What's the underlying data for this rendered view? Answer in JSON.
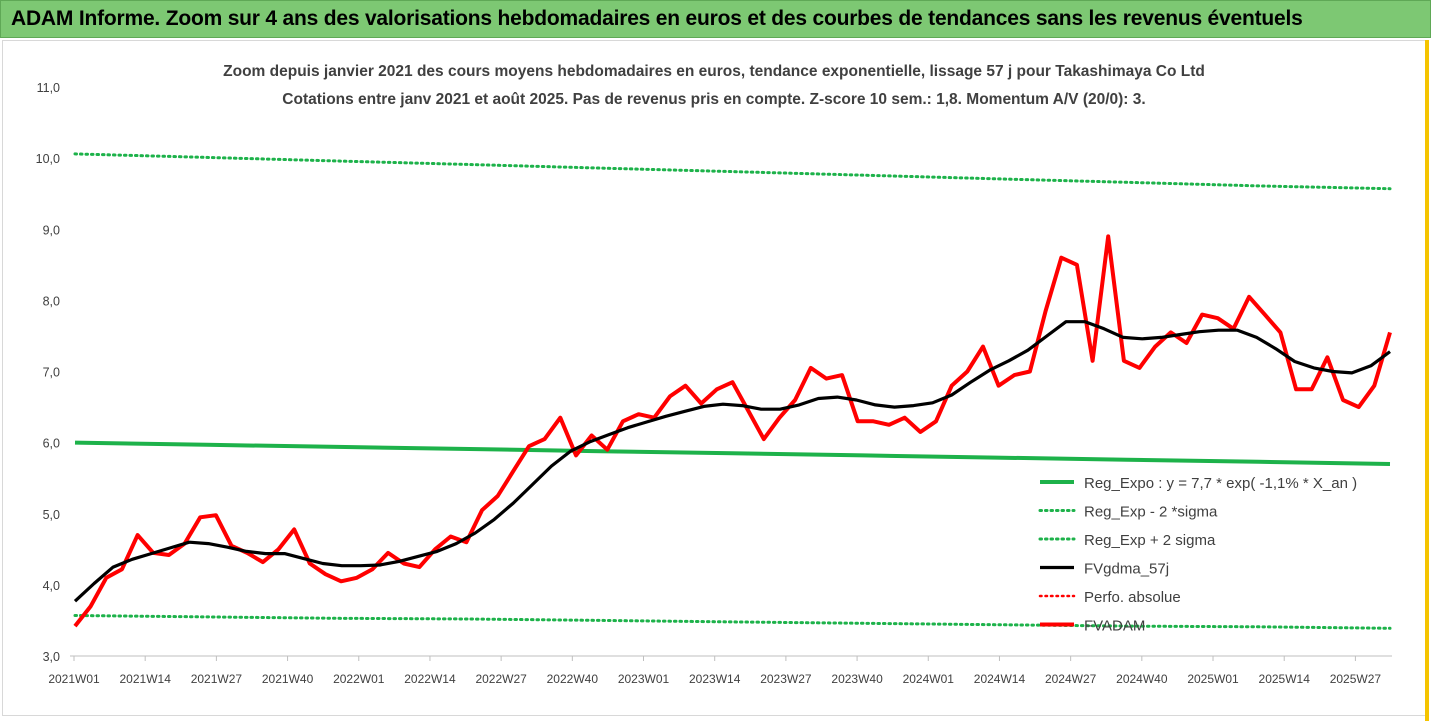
{
  "banner": {
    "title": "ADAM Informe. Zoom sur 4 ans des valorisations hebdomadaires en euros et des courbes de tendances sans les revenus éventuels"
  },
  "chart_data": {
    "type": "line",
    "title": "Zoom depuis janvier 2021 des cours moyens hebdomadaires en euros, tendance exponentielle, lissage 57 j pour Takashimaya Co Ltd",
    "subtitle": "Cotations entre janv 2021 et août 2025.  Pas de revenus pris en compte. Z-score 10 sem.: 1,8. Momentum A/V (20/0): 3.",
    "xlabel": "",
    "ylabel": "",
    "ylim": [
      3.0,
      11.0
    ],
    "yticks": [
      "3,0",
      "4,0",
      "5,0",
      "6,0",
      "7,0",
      "8,0",
      "9,0",
      "10,0",
      "11,0"
    ],
    "xticks": [
      "2021W01",
      "2021W14",
      "2021W27",
      "2021W40",
      "2022W01",
      "2022W14",
      "2022W27",
      "2022W40",
      "2023W01",
      "2023W14",
      "2023W27",
      "2023W40",
      "2024W01",
      "2024W14",
      "2024W27",
      "2024W40",
      "2025W01",
      "2025W14",
      "2025W27"
    ],
    "grid": false,
    "legend_position": "bottom-right",
    "colors": {
      "green": "#1db24a",
      "black": "#000000",
      "red": "#ff0000"
    },
    "series": [
      {
        "name": "Reg_Expo : y = 7,7 * exp( -1,1% *  X_an )",
        "style": "solid-green",
        "values": [
          6.0,
          5.97,
          5.94,
          5.91,
          5.88,
          5.85,
          5.82,
          5.79,
          5.76,
          5.73,
          5.7
        ]
      },
      {
        "name": "Reg_Exp - 2 *sigma",
        "style": "dotted-green",
        "values": [
          3.57,
          3.55,
          3.53,
          3.52,
          3.5,
          3.48,
          3.46,
          3.44,
          3.42,
          3.41,
          3.39
        ]
      },
      {
        "name": "Reg_Exp + 2 sigma",
        "style": "dotted-green",
        "values": [
          10.06,
          10.01,
          9.96,
          9.91,
          9.86,
          9.81,
          9.76,
          9.71,
          9.66,
          9.61,
          9.57
        ]
      },
      {
        "name": "FVgdma_57j",
        "style": "solid-black",
        "values": [
          3.77,
          4.02,
          4.25,
          4.36,
          4.44,
          4.52,
          4.6,
          4.58,
          4.53,
          4.47,
          4.44,
          4.44,
          4.37,
          4.3,
          4.27,
          4.27,
          4.28,
          4.33,
          4.4,
          4.47,
          4.58,
          4.73,
          4.92,
          5.15,
          5.41,
          5.67,
          5.88,
          6.01,
          6.11,
          6.21,
          6.29,
          6.37,
          6.44,
          6.51,
          6.54,
          6.52,
          6.47,
          6.47,
          6.53,
          6.62,
          6.64,
          6.6,
          6.53,
          6.5,
          6.52,
          6.56,
          6.67,
          6.85,
          7.02,
          7.15,
          7.3,
          7.5,
          7.7,
          7.7,
          7.6,
          7.48,
          7.46,
          7.48,
          7.52,
          7.56,
          7.58,
          7.58,
          7.48,
          7.32,
          7.14,
          7.05,
          7.0,
          6.98,
          7.08,
          7.28
        ]
      },
      {
        "name": "Perfo. absolue",
        "style": "dotted-red",
        "values": []
      },
      {
        "name": "FVADAM",
        "style": "solid-red",
        "values": [
          3.42,
          3.7,
          4.1,
          4.22,
          4.7,
          4.45,
          4.42,
          4.58,
          4.95,
          4.98,
          4.55,
          4.45,
          4.32,
          4.5,
          4.78,
          4.3,
          4.15,
          4.05,
          4.1,
          4.22,
          4.45,
          4.3,
          4.25,
          4.5,
          4.68,
          4.6,
          5.05,
          5.25,
          5.6,
          5.95,
          6.05,
          6.35,
          5.82,
          6.1,
          5.9,
          6.3,
          6.4,
          6.35,
          6.65,
          6.8,
          6.55,
          6.75,
          6.85,
          6.45,
          6.05,
          6.35,
          6.6,
          7.05,
          6.9,
          6.95,
          6.3,
          6.3,
          6.25,
          6.35,
          6.15,
          6.3,
          6.8,
          7.0,
          7.35,
          6.8,
          6.95,
          7.0,
          7.85,
          8.6,
          8.5,
          7.15,
          8.9,
          7.15,
          7.05,
          7.35,
          7.55,
          7.4,
          7.8,
          7.75,
          7.6,
          8.05,
          7.8,
          7.55,
          6.75,
          6.75,
          7.2,
          6.6,
          6.5,
          6.8,
          7.55
        ]
      }
    ]
  }
}
